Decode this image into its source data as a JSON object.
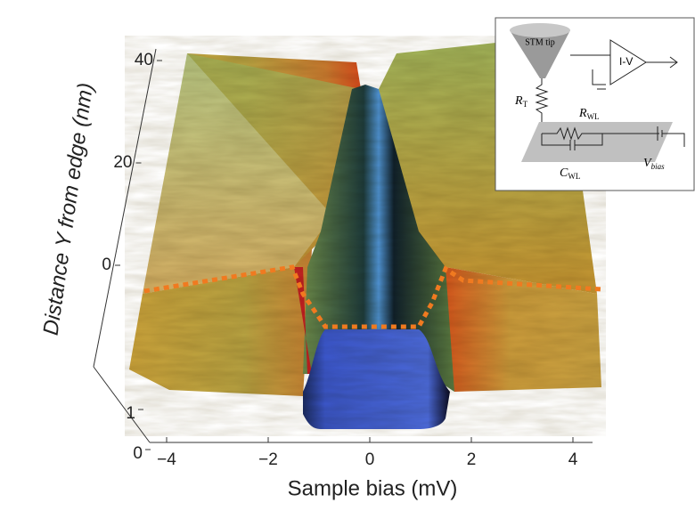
{
  "chart_data": {
    "type": "surface",
    "xlabel": "Sample bias (mV)",
    "ylabel": "Distance Y from edge (nm)",
    "xlim": [
      -4.5,
      4.5
    ],
    "xticks": [
      {
        "value": -4,
        "label": "−4"
      },
      {
        "value": -2,
        "label": "−2"
      },
      0,
      2,
      4
    ],
    "ylim": [
      0,
      40
    ],
    "yticks": [
      0,
      20,
      40
    ],
    "zlim": [
      0,
      1
    ],
    "zticks": [
      0,
      1
    ],
    "inset": {
      "tip": "STM tip",
      "amp": "I-V",
      "rt": [
        "R",
        "T"
      ],
      "rwl": [
        "R",
        "WL"
      ],
      "cwl": [
        "C",
        "WL"
      ],
      "vbias": [
        "V",
        "bias"
      ]
    }
  }
}
